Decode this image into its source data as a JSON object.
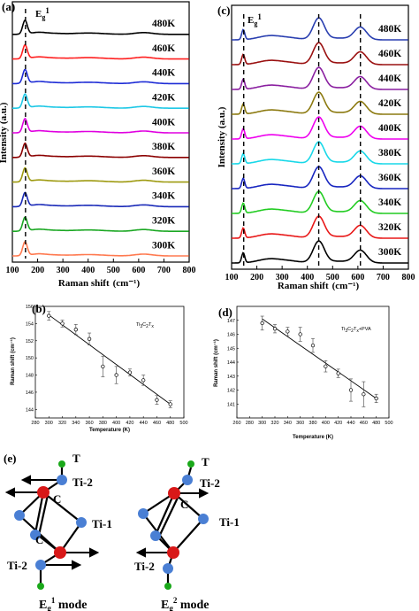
{
  "chart_data": [
    {
      "panel": "(a)",
      "type": "line",
      "xlabel": "Raman shift",
      "xunit": "(cm⁻¹)",
      "ylabel": "Intensity (a.u.)",
      "xlim": [
        100,
        800
      ],
      "xticks": [
        100,
        200,
        300,
        400,
        500,
        600,
        700,
        800
      ],
      "peak_label": "E",
      "peak_sub": "g",
      "peak_sup": "1",
      "series": [
        {
          "name": "480K",
          "color": "#000000"
        },
        {
          "name": "460K",
          "color": "#ff2020"
        },
        {
          "name": "440K",
          "color": "#1f2dd6"
        },
        {
          "name": "420K",
          "color": "#1fc8e6"
        },
        {
          "name": "400K",
          "color": "#e000e0"
        },
        {
          "name": "380K",
          "color": "#8b0000"
        },
        {
          "name": "360K",
          "color": "#9e9a10"
        },
        {
          "name": "340K",
          "color": "#1a2ab8"
        },
        {
          "name": "320K",
          "color": "#1ca824"
        },
        {
          "name": "300K",
          "color": "#ff7a50"
        }
      ]
    },
    {
      "panel": "(c)",
      "type": "line",
      "xlabel": "Raman shift",
      "xunit": "(cm⁻¹)",
      "ylabel": "Intensity (a.u.)",
      "xlim": [
        100,
        800
      ],
      "xticks": [
        100,
        200,
        300,
        400,
        500,
        600,
        700,
        800
      ],
      "peak_label": "E",
      "peak_sub": "g",
      "peak_sup": "1",
      "series": [
        {
          "name": "480K",
          "color": "#2a3fb0"
        },
        {
          "name": "460K",
          "color": "#9a1010"
        },
        {
          "name": "440K",
          "color": "#8a1fa0"
        },
        {
          "name": "420K",
          "color": "#8c7a10"
        },
        {
          "name": "400K",
          "color": "#ee00ee"
        },
        {
          "name": "380K",
          "color": "#18d8e8"
        },
        {
          "name": "360K",
          "color": "#1826c0"
        },
        {
          "name": "340K",
          "color": "#22cc22"
        },
        {
          "name": "320K",
          "color": "#e81818"
        },
        {
          "name": "300K",
          "color": "#000000"
        }
      ]
    },
    {
      "panel": "(b)",
      "type": "scatter",
      "legend": "Ti3C2Tx",
      "xlabel": "Temperature (K)",
      "ylabel": "Raman shift (cm⁻¹)",
      "xlim": [
        280,
        500
      ],
      "ylim": [
        143,
        156
      ],
      "xticks": [
        280,
        300,
        320,
        340,
        360,
        380,
        400,
        420,
        440,
        460,
        480,
        500
      ],
      "yticks": [
        144,
        146,
        148,
        150,
        152,
        154,
        156
      ],
      "x": [
        300,
        320,
        340,
        360,
        380,
        400,
        420,
        440,
        460,
        480
      ],
      "y": [
        154.9,
        154.0,
        153.3,
        152.2,
        149.0,
        148.0,
        148.3,
        147.4,
        145.1,
        144.6
      ],
      "err": [
        0.5,
        0.4,
        0.6,
        0.7,
        1.2,
        1.0,
        0.4,
        0.6,
        0.5,
        0.4
      ],
      "fit": [
        [
          300,
          155.0
        ],
        [
          480,
          144.6
        ]
      ]
    },
    {
      "panel": "(d)",
      "type": "scatter",
      "legend": "Ti3C2Tx+PVA",
      "xlabel": "Temperature (K)",
      "ylabel": "Raman shift (cm⁻¹)",
      "xlim": [
        260,
        500
      ],
      "ylim": [
        140,
        148
      ],
      "xticks": [
        260,
        280,
        300,
        320,
        340,
        360,
        380,
        400,
        420,
        440,
        460,
        480,
        500
      ],
      "yticks": [
        141,
        142,
        143,
        144,
        145,
        146,
        147
      ],
      "x": [
        300,
        320,
        340,
        360,
        380,
        400,
        420,
        440,
        460,
        480
      ],
      "y": [
        146.8,
        146.4,
        146.2,
        146.0,
        145.2,
        143.7,
        143.2,
        142.0,
        141.7,
        141.4
      ],
      "err": [
        0.5,
        0.3,
        0.3,
        0.5,
        0.5,
        0.4,
        0.3,
        0.8,
        0.9,
        0.3
      ],
      "fit": [
        [
          300,
          147.1
        ],
        [
          480,
          141.4
        ]
      ]
    }
  ],
  "panel_e": {
    "label": "(e)",
    "labels": {
      "T": "T",
      "ti2": "Ti-2",
      "ti1": "Ti-1",
      "c": "C"
    },
    "mode1": {
      "E": "E",
      "sub": "g",
      "sup": "1",
      "rest": " mode"
    },
    "mode2": {
      "E": "E",
      "sub": "g",
      "sup": "2",
      "rest": " mode"
    },
    "colors": {
      "ti": "#4a7fd4",
      "c": "#d81818",
      "t": "#1aa81a"
    }
  }
}
